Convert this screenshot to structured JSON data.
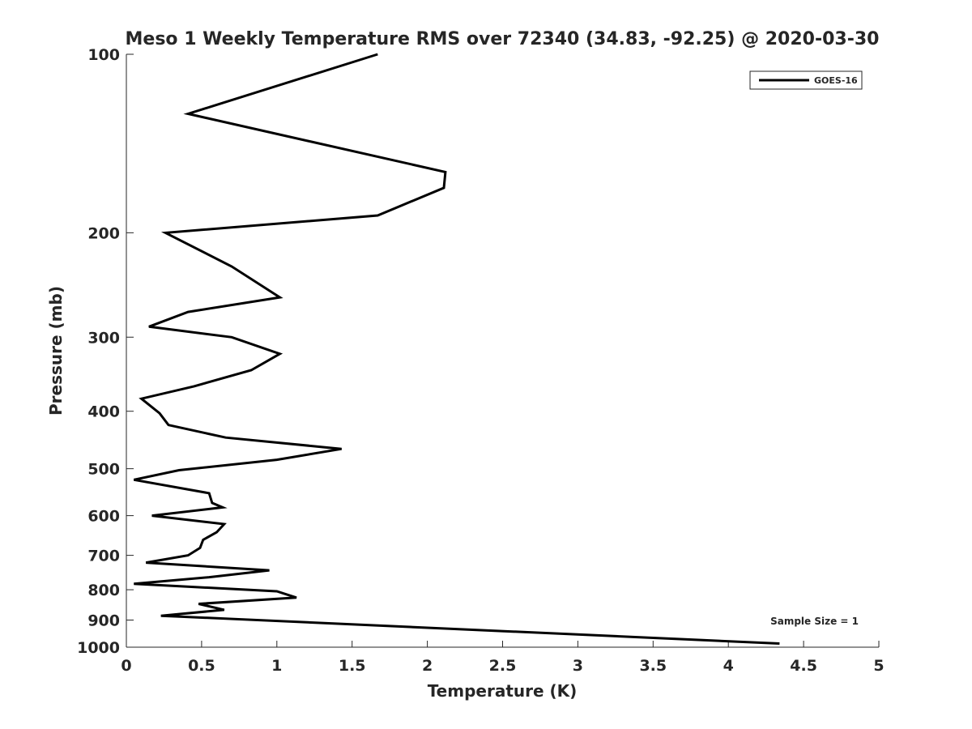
{
  "chart_data": {
    "type": "line",
    "title": "Meso 1 Weekly Temperature RMS over 72340 (34.83, -92.25) @ 2020-03-30",
    "xlabel": "Temperature (K)",
    "ylabel": "Pressure (mb)",
    "xlim": [
      0,
      5
    ],
    "ylim": [
      100,
      1000
    ],
    "y_scale": "log",
    "y_reversed": true,
    "xticks": [
      "0",
      "0.5",
      "1",
      "1.5",
      "2",
      "2.5",
      "3",
      "3.5",
      "4",
      "4.5",
      "5"
    ],
    "yticks": [
      "100",
      "200",
      "300",
      "400",
      "500",
      "600",
      "700",
      "800",
      "900",
      "1000"
    ],
    "legend_position": "top-right",
    "annotation": "Sample Size = 1",
    "line_color": "#000000",
    "series": [
      {
        "name": "GOES-16",
        "points": [
          [
            1.67,
            100
          ],
          [
            0.41,
            126
          ],
          [
            2.12,
            158
          ],
          [
            2.11,
            168
          ],
          [
            1.67,
            187
          ],
          [
            0.26,
            200
          ],
          [
            0.7,
            228
          ],
          [
            1.02,
            257
          ],
          [
            0.41,
            272
          ],
          [
            0.15,
            288
          ],
          [
            0.7,
            300
          ],
          [
            1.02,
            320
          ],
          [
            0.83,
            341
          ],
          [
            0.45,
            363
          ],
          [
            0.1,
            381
          ],
          [
            0.22,
            403
          ],
          [
            0.28,
            422
          ],
          [
            0.66,
            443
          ],
          [
            1.43,
            463
          ],
          [
            1.0,
            483
          ],
          [
            0.35,
            503
          ],
          [
            0.05,
            522
          ],
          [
            0.55,
            550
          ],
          [
            0.57,
            571
          ],
          [
            0.64,
            581
          ],
          [
            0.17,
            600
          ],
          [
            0.65,
            620
          ],
          [
            0.6,
            640
          ],
          [
            0.51,
            659
          ],
          [
            0.49,
            680
          ],
          [
            0.41,
            700
          ],
          [
            0.13,
            720
          ],
          [
            0.95,
            742
          ],
          [
            0.55,
            762
          ],
          [
            0.05,
            782
          ],
          [
            1.0,
            805
          ],
          [
            1.13,
            825
          ],
          [
            0.48,
            845
          ],
          [
            0.65,
            865
          ],
          [
            0.23,
            885
          ],
          [
            4.34,
            986
          ]
        ]
      }
    ]
  }
}
